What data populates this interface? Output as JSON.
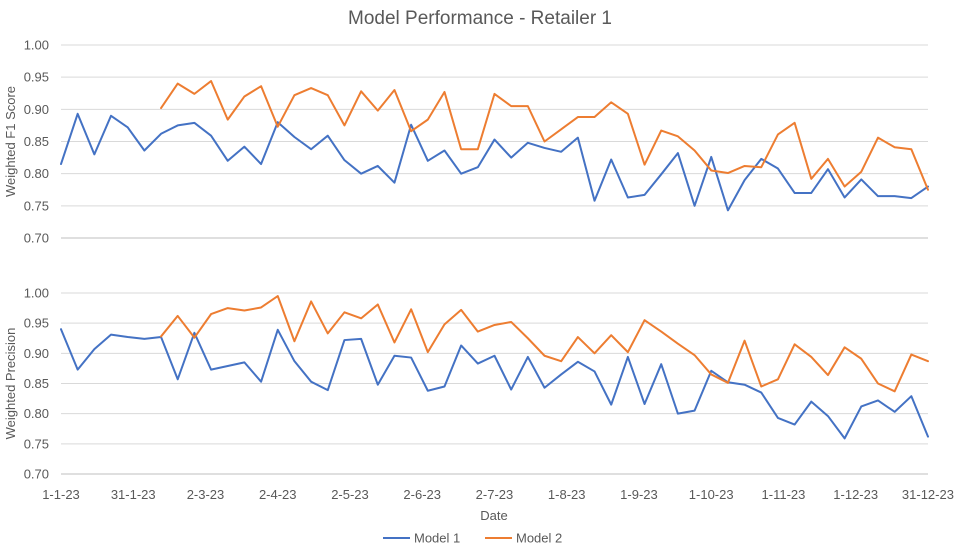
{
  "chart_data": {
    "type": "line",
    "title": "Model Performance - Retailer 1",
    "xlabel": "Date",
    "x_tick_labels": [
      "1-1-23",
      "31-1-23",
      "2-3-23",
      "2-4-23",
      "2-5-23",
      "2-6-23",
      "2-7-23",
      "1-8-23",
      "1-9-23",
      "1-10-23",
      "1-11-23",
      "1-12-23",
      "31-12-23"
    ],
    "x_range": [
      0,
      52
    ],
    "x_tick_step": 4.333,
    "colors": {
      "Model 1": "#4472c4",
      "Model 2": "#ed7d31"
    },
    "panels": [
      {
        "ylabel": "Weighted F1 Score",
        "ylim": [
          0.7,
          1.0
        ],
        "yticks": [
          "0.70",
          "0.75",
          "0.80",
          "0.85",
          "0.90",
          "0.95",
          "1.00"
        ],
        "series": [
          {
            "name": "Model 1",
            "values": [
              0.815,
              0.893,
              0.83,
              0.89,
              0.872,
              0.836,
              0.862,
              0.875,
              0.879,
              0.859,
              0.82,
              0.842,
              0.815,
              0.88,
              0.857,
              0.838,
              0.859,
              0.821,
              0.8,
              0.812,
              0.786,
              0.876,
              0.82,
              0.836,
              0.8,
              0.81,
              0.853,
              0.825,
              0.848,
              0.84,
              0.834,
              0.856,
              0.758,
              0.822,
              0.763,
              0.767,
              0.799,
              0.832,
              0.75,
              0.826,
              0.743,
              0.79,
              0.823,
              0.808,
              0.77,
              0.77,
              0.807,
              0.763,
              0.791,
              0.765,
              0.765,
              0.762,
              0.78
            ]
          },
          {
            "name": "Model 2",
            "values": [
              null,
              null,
              null,
              null,
              null,
              null,
              0.902,
              0.94,
              0.924,
              0.944,
              0.884,
              0.92,
              0.936,
              0.873,
              0.922,
              0.933,
              0.922,
              0.875,
              0.928,
              0.898,
              0.93,
              0.866,
              0.884,
              0.927,
              0.838,
              0.838,
              0.924,
              0.905,
              0.905,
              0.85,
              0.869,
              0.888,
              0.888,
              0.911,
              0.893,
              0.814,
              0.867,
              0.858,
              0.836,
              0.805,
              0.801,
              0.812,
              0.81,
              0.861,
              0.879,
              0.792,
              0.823,
              0.78,
              0.803,
              0.856,
              0.841,
              0.838,
              0.775
            ]
          }
        ]
      },
      {
        "ylabel": "Weighted Precision",
        "ylim": [
          0.7,
          1.0
        ],
        "yticks": [
          "0.70",
          "0.75",
          "0.80",
          "0.85",
          "0.90",
          "0.95",
          "1.00"
        ],
        "series": [
          {
            "name": "Model 1",
            "values": [
              0.94,
              0.873,
              0.907,
              0.931,
              0.927,
              0.924,
              0.927,
              0.857,
              0.934,
              0.873,
              0.879,
              0.885,
              0.853,
              0.939,
              0.887,
              0.853,
              0.839,
              0.922,
              0.924,
              0.848,
              0.896,
              0.893,
              0.838,
              0.845,
              0.913,
              0.883,
              0.896,
              0.84,
              0.894,
              0.843,
              0.865,
              0.886,
              0.87,
              0.815,
              0.894,
              0.816,
              0.882,
              0.8,
              0.805,
              0.871,
              0.852,
              0.848,
              0.835,
              0.793,
              0.782,
              0.82,
              0.796,
              0.759,
              0.812,
              0.822,
              0.803,
              0.829,
              0.762
            ]
          },
          {
            "name": "Model 2",
            "values": [
              null,
              null,
              null,
              null,
              null,
              null,
              0.928,
              0.962,
              0.926,
              0.965,
              0.975,
              0.971,
              0.976,
              0.995,
              0.92,
              0.986,
              0.933,
              0.968,
              0.958,
              0.981,
              0.918,
              0.973,
              0.902,
              0.948,
              0.972,
              0.936,
              0.947,
              0.952,
              0.925,
              0.896,
              0.887,
              0.927,
              0.9,
              0.93,
              0.902,
              0.955,
              0.936,
              0.916,
              0.897,
              0.865,
              0.851,
              0.921,
              0.845,
              0.857,
              0.915,
              0.894,
              0.864,
              0.91,
              0.891,
              0.85,
              0.837,
              0.898,
              0.887
            ]
          }
        ]
      }
    ],
    "legend": [
      "Model 1",
      "Model 2"
    ]
  }
}
